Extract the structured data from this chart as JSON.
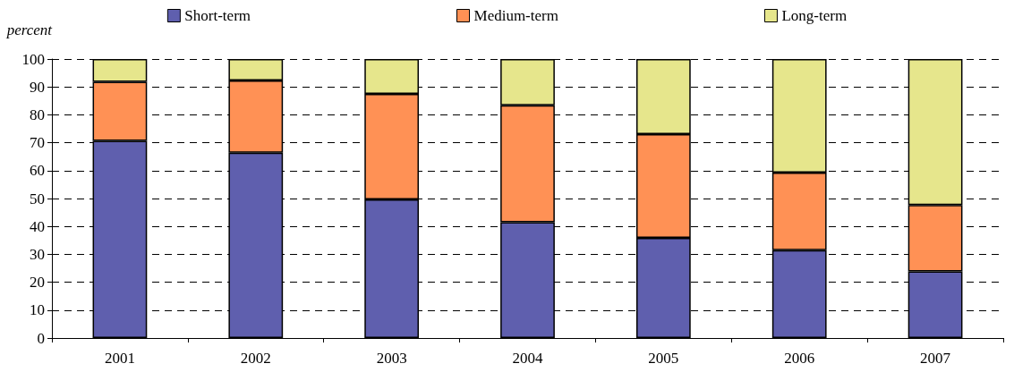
{
  "chart_data": {
    "type": "bar",
    "ylabel": "percent",
    "stacked": true,
    "categories": [
      "2001",
      "2002",
      "2003",
      "2004",
      "2005",
      "2006",
      "2007"
    ],
    "series": [
      {
        "name": "Short-term",
        "color": "#5f5fae",
        "values": [
          70.7,
          66.4,
          49.7,
          41.5,
          35.9,
          31.5,
          23.9
        ]
      },
      {
        "name": "Medium-term",
        "color": "#ff9155",
        "values": [
          21.1,
          25.9,
          37.8,
          41.9,
          37.2,
          27.8,
          23.8
        ]
      },
      {
        "name": "Long-term",
        "color": "#e6e68c",
        "values": [
          8.2,
          7.7,
          12.5,
          16.6,
          26.9,
          40.7,
          52.3
        ]
      }
    ],
    "ylim": [
      0,
      100
    ],
    "yticks": [
      0,
      10,
      20,
      30,
      40,
      50,
      60,
      70,
      80,
      90,
      100
    ],
    "grid": "y",
    "legend": "top"
  }
}
